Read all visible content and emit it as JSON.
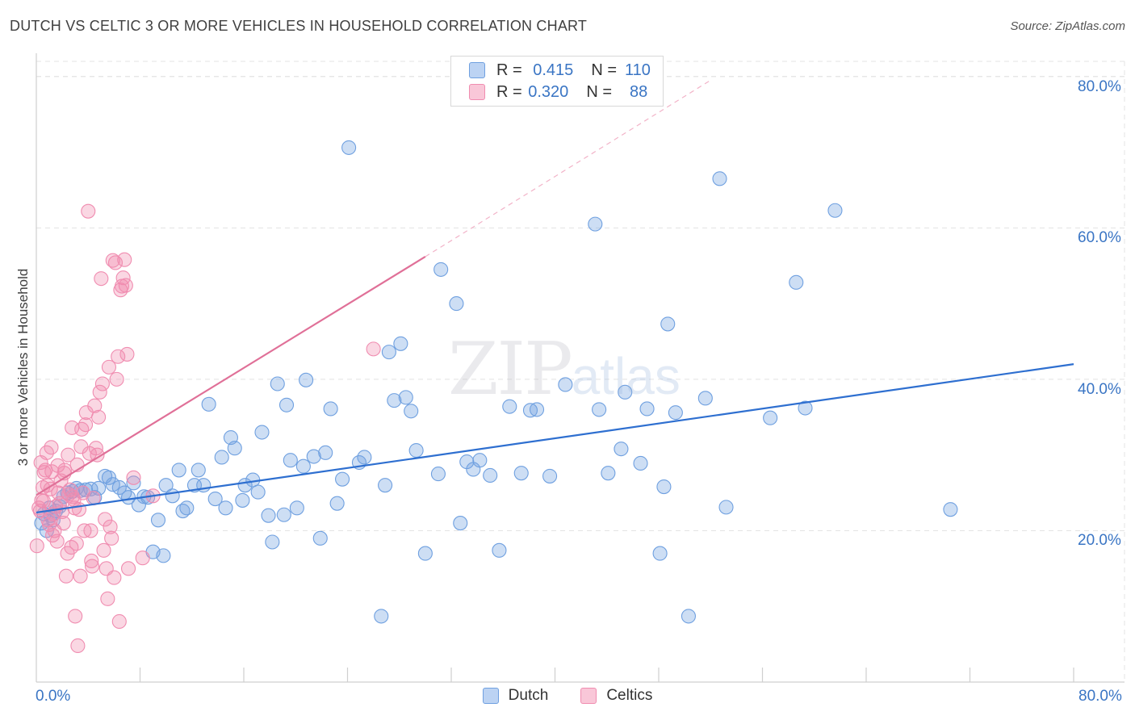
{
  "title": "DUTCH VS CELTIC 3 OR MORE VEHICLES IN HOUSEHOLD CORRELATION CHART",
  "source": "Source: ZipAtlas.com",
  "watermark": {
    "zip": "ZIP",
    "atlas": "atlas"
  },
  "legend_top": [
    {
      "r_label": "R =",
      "r_value": "0.415",
      "n_label": "N =",
      "n_value": "110"
    },
    {
      "r_label": "R =",
      "r_value": "0.320",
      "n_label": "N =",
      "n_value": "88"
    }
  ],
  "chart_data": {
    "type": "scatter",
    "title": "DUTCH VS CELTIC 3 OR MORE VEHICLES IN HOUSEHOLD CORRELATION CHART",
    "xlabel": "",
    "ylabel": "3 or more Vehicles in Household",
    "xlim": [
      0,
      80
    ],
    "ylim": [
      0,
      82
    ],
    "x_tick_labels": [
      "0.0%",
      "80.0%"
    ],
    "y_tick_labels": [
      "20.0%",
      "40.0%",
      "60.0%",
      "80.0%"
    ],
    "y_ticks": [
      20,
      40,
      60,
      80
    ],
    "grid": true,
    "colors": {
      "dutch": "#6fa0e0",
      "celtics": "#f08cb0",
      "dutch_line": "#2e6fd0",
      "celtics_line": "#e07098"
    },
    "series": [
      {
        "name": "Dutch",
        "trend": {
          "x0": 0,
          "y0": 22.4,
          "x1": 80,
          "y1": 42.0
        },
        "points": [
          [
            0.4,
            21.0
          ],
          [
            0.6,
            22.2
          ],
          [
            0.8,
            20.0
          ],
          [
            1.0,
            23.0
          ],
          [
            1.1,
            22.0
          ],
          [
            1.3,
            21.4
          ],
          [
            1.5,
            22.6
          ],
          [
            1.8,
            23.2
          ],
          [
            2.1,
            24.5
          ],
          [
            2.4,
            25.0
          ],
          [
            2.8,
            25.2
          ],
          [
            3.1,
            25.6
          ],
          [
            3.4,
            25.3
          ],
          [
            3.8,
            25.4
          ],
          [
            4.2,
            25.5
          ],
          [
            4.5,
            24.4
          ],
          [
            4.8,
            25.6
          ],
          [
            5.3,
            27.2
          ],
          [
            5.6,
            27.0
          ],
          [
            5.9,
            26.1
          ],
          [
            6.4,
            25.7
          ],
          [
            6.8,
            25.0
          ],
          [
            7.1,
            24.4
          ],
          [
            7.5,
            26.3
          ],
          [
            7.9,
            23.4
          ],
          [
            8.3,
            24.5
          ],
          [
            8.6,
            24.4
          ],
          [
            9.0,
            17.2
          ],
          [
            9.4,
            21.4
          ],
          [
            9.8,
            16.7
          ],
          [
            10.0,
            26.0
          ],
          [
            10.5,
            24.6
          ],
          [
            11.0,
            28.0
          ],
          [
            11.3,
            22.6
          ],
          [
            11.6,
            23.0
          ],
          [
            12.2,
            26.0
          ],
          [
            12.5,
            28.0
          ],
          [
            12.9,
            26.0
          ],
          [
            13.3,
            36.7
          ],
          [
            13.8,
            24.2
          ],
          [
            14.3,
            29.7
          ],
          [
            14.6,
            23.0
          ],
          [
            15.0,
            32.3
          ],
          [
            15.3,
            30.9
          ],
          [
            15.9,
            24.0
          ],
          [
            16.1,
            26.0
          ],
          [
            16.7,
            26.7
          ],
          [
            17.1,
            25.1
          ],
          [
            17.4,
            33.0
          ],
          [
            17.9,
            22.0
          ],
          [
            18.2,
            18.5
          ],
          [
            18.6,
            39.4
          ],
          [
            19.1,
            22.1
          ],
          [
            19.3,
            36.6
          ],
          [
            19.6,
            29.3
          ],
          [
            20.1,
            23.0
          ],
          [
            20.6,
            28.5
          ],
          [
            20.8,
            39.9
          ],
          [
            21.4,
            29.8
          ],
          [
            21.9,
            19.0
          ],
          [
            22.3,
            30.3
          ],
          [
            22.7,
            36.1
          ],
          [
            23.2,
            23.6
          ],
          [
            23.6,
            26.8
          ],
          [
            24.1,
            70.6
          ],
          [
            24.9,
            29.0
          ],
          [
            25.3,
            29.7
          ],
          [
            26.6,
            8.7
          ],
          [
            26.9,
            26.0
          ],
          [
            27.2,
            43.6
          ],
          [
            27.6,
            37.2
          ],
          [
            28.1,
            44.7
          ],
          [
            28.5,
            37.6
          ],
          [
            28.9,
            35.8
          ],
          [
            29.3,
            30.6
          ],
          [
            30.0,
            17.0
          ],
          [
            31.0,
            27.5
          ],
          [
            31.2,
            54.5
          ],
          [
            32.4,
            50.0
          ],
          [
            32.7,
            21.0
          ],
          [
            33.2,
            29.1
          ],
          [
            33.7,
            28.1
          ],
          [
            34.2,
            29.3
          ],
          [
            35.0,
            27.3
          ],
          [
            35.7,
            17.4
          ],
          [
            36.5,
            36.4
          ],
          [
            37.4,
            27.6
          ],
          [
            38.1,
            35.9
          ],
          [
            38.6,
            36.0
          ],
          [
            39.6,
            27.2
          ],
          [
            40.8,
            39.3
          ],
          [
            43.1,
            60.5
          ],
          [
            43.4,
            36.0
          ],
          [
            44.1,
            27.6
          ],
          [
            45.1,
            30.8
          ],
          [
            45.4,
            38.3
          ],
          [
            46.6,
            28.9
          ],
          [
            47.1,
            36.1
          ],
          [
            48.1,
            17.0
          ],
          [
            48.4,
            25.8
          ],
          [
            48.7,
            47.3
          ],
          [
            49.3,
            35.6
          ],
          [
            50.3,
            8.7
          ],
          [
            51.6,
            37.5
          ],
          [
            52.7,
            66.5
          ],
          [
            53.2,
            23.1
          ],
          [
            56.6,
            34.9
          ],
          [
            58.6,
            52.8
          ],
          [
            59.3,
            36.2
          ],
          [
            61.6,
            62.3
          ],
          [
            70.5,
            22.8
          ]
        ]
      },
      {
        "name": "Celtics",
        "trend": {
          "x0": 0,
          "y0": 24.7,
          "x1": 30,
          "y1": 56.2,
          "dash_x1": 52,
          "dash_y1": 79.5
        },
        "points": [
          [
            0.05,
            18.0
          ],
          [
            0.2,
            23.0
          ],
          [
            0.3,
            22.6
          ],
          [
            0.4,
            24.0
          ],
          [
            0.5,
            25.7
          ],
          [
            0.6,
            27.7
          ],
          [
            0.7,
            28.0
          ],
          [
            0.8,
            30.3
          ],
          [
            0.9,
            21.4
          ],
          [
            1.0,
            20.8
          ],
          [
            1.1,
            25.5
          ],
          [
            1.2,
            27.8
          ],
          [
            1.3,
            22.2
          ],
          [
            1.4,
            20.0
          ],
          [
            1.5,
            23.2
          ],
          [
            1.6,
            18.6
          ],
          [
            1.7,
            25.0
          ],
          [
            1.8,
            23.6
          ],
          [
            1.9,
            26.6
          ],
          [
            2.0,
            22.5
          ],
          [
            2.1,
            21.0
          ],
          [
            2.2,
            28.0
          ],
          [
            2.3,
            14.0
          ],
          [
            2.4,
            17.0
          ],
          [
            2.5,
            24.8
          ],
          [
            2.6,
            25.4
          ],
          [
            2.7,
            17.8
          ],
          [
            2.8,
            24.5
          ],
          [
            2.9,
            24.1
          ],
          [
            3.0,
            8.7
          ],
          [
            3.1,
            18.3
          ],
          [
            3.2,
            4.8
          ],
          [
            3.3,
            22.8
          ],
          [
            3.4,
            14.0
          ],
          [
            3.5,
            33.4
          ],
          [
            3.6,
            25.0
          ],
          [
            3.7,
            20.0
          ],
          [
            3.8,
            34.0
          ],
          [
            4.0,
            62.2
          ],
          [
            4.1,
            30.2
          ],
          [
            4.2,
            20.0
          ],
          [
            4.3,
            15.3
          ],
          [
            4.4,
            24.3
          ],
          [
            4.5,
            36.5
          ],
          [
            4.6,
            30.9
          ],
          [
            4.7,
            30.0
          ],
          [
            4.8,
            35.0
          ],
          [
            4.9,
            38.3
          ],
          [
            5.0,
            53.3
          ],
          [
            5.1,
            39.4
          ],
          [
            5.2,
            17.4
          ],
          [
            5.3,
            21.5
          ],
          [
            5.4,
            15.0
          ],
          [
            5.5,
            11.0
          ],
          [
            5.6,
            41.6
          ],
          [
            5.7,
            20.5
          ],
          [
            5.8,
            19.0
          ],
          [
            5.9,
            55.7
          ],
          [
            6.0,
            13.8
          ],
          [
            6.1,
            55.4
          ],
          [
            6.2,
            40.0
          ],
          [
            6.3,
            43.0
          ],
          [
            6.4,
            8.0
          ],
          [
            6.5,
            51.8
          ],
          [
            6.6,
            52.3
          ],
          [
            6.7,
            53.4
          ],
          [
            6.8,
            55.8
          ],
          [
            6.9,
            52.4
          ],
          [
            7.0,
            43.3
          ],
          [
            7.1,
            15.0
          ],
          [
            7.5,
            27.0
          ],
          [
            8.2,
            16.4
          ],
          [
            9.0,
            24.6
          ],
          [
            1.15,
            31.0
          ],
          [
            0.35,
            29.0
          ],
          [
            0.55,
            23.9
          ],
          [
            0.85,
            26.0
          ],
          [
            1.25,
            19.4
          ],
          [
            2.15,
            27.6
          ],
          [
            2.45,
            30.0
          ],
          [
            2.95,
            23.0
          ],
          [
            3.45,
            31.1
          ],
          [
            3.85,
            35.6
          ],
          [
            4.25,
            16.0
          ],
          [
            26.0,
            44.0
          ],
          [
            1.65,
            28.6
          ],
          [
            2.75,
            33.6
          ],
          [
            3.15,
            28.7
          ]
        ]
      }
    ]
  },
  "legend_bottom": [
    {
      "label": "Dutch"
    },
    {
      "label": "Celtics"
    }
  ]
}
